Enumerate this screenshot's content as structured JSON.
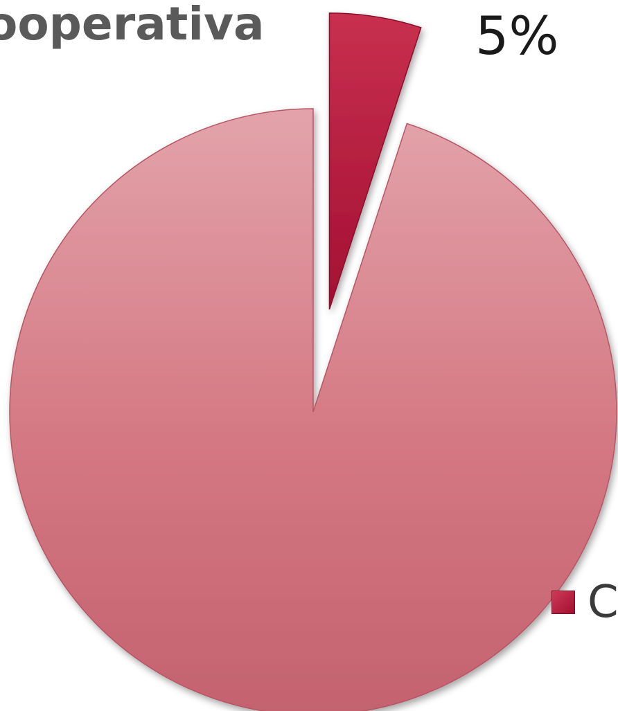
{
  "chart_data": {
    "type": "pie",
    "title": "ooperativa",
    "slices": [
      {
        "label": "C",
        "value": 5,
        "display": "5%",
        "color": "#b21a3d",
        "exploded": true
      },
      {
        "label": "",
        "value": 95,
        "display": "",
        "color": "#d67a86",
        "exploded": false
      }
    ],
    "legend": {
      "placement": "bottom-right",
      "entries": [
        "C"
      ]
    },
    "start_angle_deg": 0
  }
}
